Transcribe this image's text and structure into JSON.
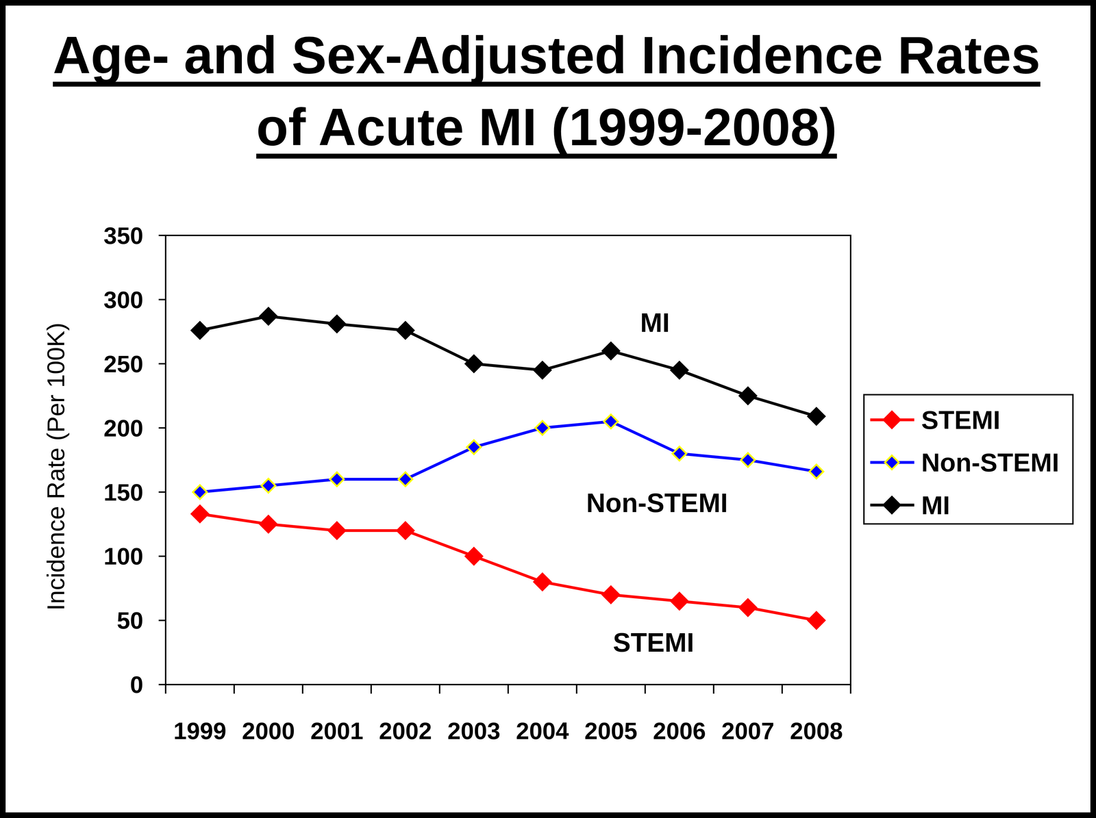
{
  "chart_data": {
    "type": "line",
    "title": "Age- and Sex-Adjusted Incidence Rates of Acute MI (1999-2008)",
    "y_label": "Incidence Rate (Per 100K)",
    "categories": [
      "1999",
      "2000",
      "2001",
      "2002",
      "2003",
      "2004",
      "2005",
      "2006",
      "2007",
      "2008"
    ],
    "series": [
      {
        "name": "STEMI",
        "color": "#ff0000",
        "marker": "diamond",
        "line_style": "solid",
        "values": [
          133,
          125,
          120,
          120,
          100,
          80,
          70,
          65,
          60,
          50
        ]
      },
      {
        "name": "Non-STEMI",
        "color": "#0000ff",
        "marker": "diamond",
        "line_style": "solid",
        "values": [
          150,
          155,
          160,
          160,
          185,
          200,
          205,
          180,
          175,
          166
        ]
      },
      {
        "name": "MI",
        "color": "#000000",
        "marker": "diamond",
        "line_style": "solid",
        "values": [
          276,
          287,
          281,
          276,
          250,
          245,
          260,
          245,
          225,
          209
        ]
      }
    ],
    "annotations": [
      "MI",
      "Non-STEMI",
      "STEMI"
    ],
    "ylim": [
      0,
      350
    ],
    "yticks": [
      0,
      50,
      100,
      150,
      200,
      250,
      300,
      350
    ],
    "grid": false,
    "legend": "right"
  }
}
